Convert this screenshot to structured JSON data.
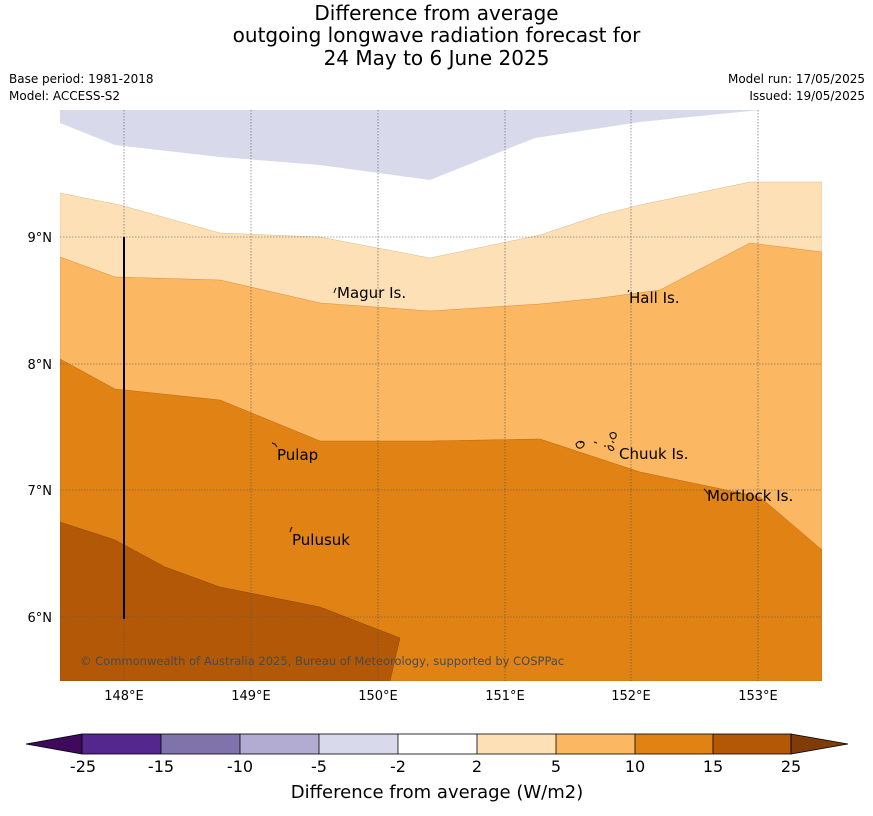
{
  "title": {
    "line1": "Difference from average",
    "line2": "outgoing longwave radiation forecast for",
    "line3": "24 May to 6 June 2025"
  },
  "info": {
    "base_period": "Base period: 1981-2018",
    "model": "Model: ACCESS-S2",
    "model_run": "Model run: 17/05/2025",
    "issued": "Issued: 19/05/2025"
  },
  "map": {
    "lat_labels": [
      "9°N",
      "8°N",
      "7°N",
      "6°N"
    ],
    "lon_labels": [
      "148°E",
      "149°E",
      "150°E",
      "151°E",
      "152°E",
      "153°E"
    ],
    "places": [
      {
        "name": "Magur Is."
      },
      {
        "name": "Hall Is."
      },
      {
        "name": "Pulap"
      },
      {
        "name": "Chuuk Is."
      },
      {
        "name": "Mortlock Is."
      },
      {
        "name": "Pulusuk"
      }
    ],
    "copyright": "© Commonwealth of Australia 2025, Bureau of Meteorology, supported by COSPPac"
  },
  "colorbar": {
    "title": "Difference from average (W/m2)",
    "ticks": [
      "-25",
      "-15",
      "-10",
      "-5",
      "-2",
      "2",
      "5",
      "10",
      "15",
      "25"
    ],
    "colors": {
      "below_-25": "#3f0a5e",
      "-25_-15": "#54278f",
      "-15_-10": "#8073ac",
      "-10_-5": "#b2abd2",
      "-5_-2": "#d8daeb",
      "-2_2": "#ffffff",
      "2_5": "#fde0b6",
      "5_10": "#fbb761",
      "10_15": "#e08214",
      "15_25": "#b35806",
      "above_25": "#7f3b08"
    }
  }
}
